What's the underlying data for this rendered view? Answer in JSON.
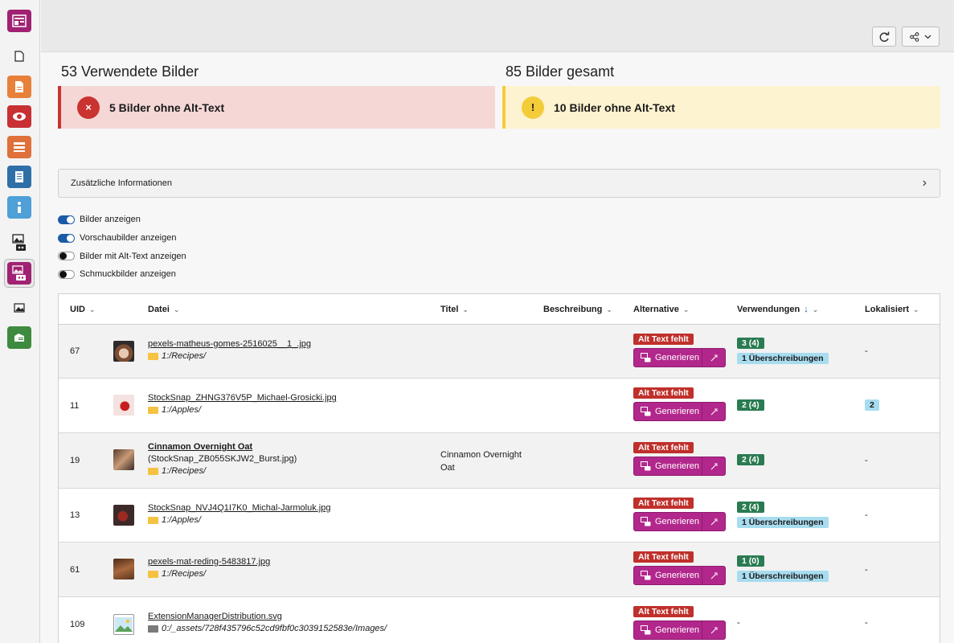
{
  "topbar": {
    "refresh_icon": "refresh-icon",
    "share_icon": "share-icon"
  },
  "sidebar": {
    "items": [
      {
        "name": "web-layout-module",
        "color": "#a02272"
      },
      {
        "name": "page-module",
        "color": "#f5f5f5"
      },
      {
        "name": "list-module",
        "color": "#e8803a"
      },
      {
        "name": "view-module",
        "color": "#c83033"
      },
      {
        "name": "records-module",
        "color": "#e0703a"
      },
      {
        "name": "report-module",
        "color": "#2f6fa8"
      },
      {
        "name": "info-module",
        "color": "#4f9fd8"
      },
      {
        "name": "ai-image-module",
        "color": "#ffffff"
      },
      {
        "name": "alt-text-module",
        "color": "#a02272"
      },
      {
        "name": "filelist-module",
        "color": "#ffffff"
      },
      {
        "name": "extension-module",
        "color": "#3e8a3e"
      }
    ]
  },
  "stats": {
    "used_title": "53 Verwendete Bilder",
    "used_alert": "5 Bilder ohne Alt-Text",
    "used_alert_symbol": "×",
    "total_title": "85 Bilder gesamt",
    "total_alert": "10 Bilder ohne Alt-Text",
    "total_alert_symbol": "!"
  },
  "accordion": {
    "label": "Zusätzliche Informationen",
    "chevron": "›"
  },
  "toggles": [
    {
      "label": "Bilder anzeigen",
      "on": true
    },
    {
      "label": "Vorschaubilder anzeigen",
      "on": true
    },
    {
      "label": "Bilder mit Alt-Text anzeigen",
      "on": false
    },
    {
      "label": "Schmuckbilder anzeigen",
      "on": false
    }
  ],
  "table": {
    "headers": {
      "uid": "UID",
      "datei": "Datei",
      "titel": "Titel",
      "beschreibung": "Beschreibung",
      "alternative": "Alternative",
      "verwendungen": "Verwendungen",
      "lokalisiert": "Lokalisiert"
    },
    "missing_label": "Alt Text fehlt",
    "generate_label": "Generieren",
    "rows": [
      {
        "uid": "67",
        "title_bold": "",
        "file": "pexels-matheus-gomes-2516025__1_.jpg",
        "path": "1:/Recipes/",
        "titel": "",
        "usage": "3 (4)",
        "overrides": "1 Überschreibungen",
        "localized": "-",
        "thumb": "#caa48a"
      },
      {
        "uid": "11",
        "title_bold": "",
        "file": "StockSnap_ZHNG376V5P_Michael-Grosicki.jpg",
        "path": "1:/Apples/",
        "titel": "",
        "usage": "2 (4)",
        "overrides": "",
        "localized": "2",
        "thumb": "#f3e2e0"
      },
      {
        "uid": "19",
        "title_bold": "Cinnamon Overnight Oat",
        "file": "(StockSnap_ZB055SKJW2_Burst.jpg)",
        "path": "1:/Recipes/",
        "titel": "Cinnamon Overnight Oat",
        "usage": "2 (4)",
        "overrides": "",
        "localized": "-",
        "thumb": "#8a5d48"
      },
      {
        "uid": "13",
        "title_bold": "",
        "file": "StockSnap_NVJ4Q1I7K0_Michal-Jarmoluk.jpg",
        "path": "1:/Apples/",
        "titel": "",
        "usage": "2 (4)",
        "overrides": "1 Überschreibungen",
        "localized": "-",
        "thumb": "#6b4a42"
      },
      {
        "uid": "61",
        "title_bold": "",
        "file": "pexels-mat-reding-5483817.jpg",
        "path": "1:/Recipes/",
        "titel": "",
        "usage": "1 (0)",
        "overrides": "1 Überschreibungen",
        "localized": "-",
        "thumb": "#7a4a2a"
      },
      {
        "uid": "109",
        "title_bold": "",
        "file": "ExtensionManagerDistribution.svg",
        "path": "0:/_assets/728f435796c52cd9fbf0c3039152583e/Images/",
        "titel": "",
        "usage": "-",
        "overrides": "",
        "localized": "-",
        "thumb": "#5ba25a"
      }
    ]
  }
}
